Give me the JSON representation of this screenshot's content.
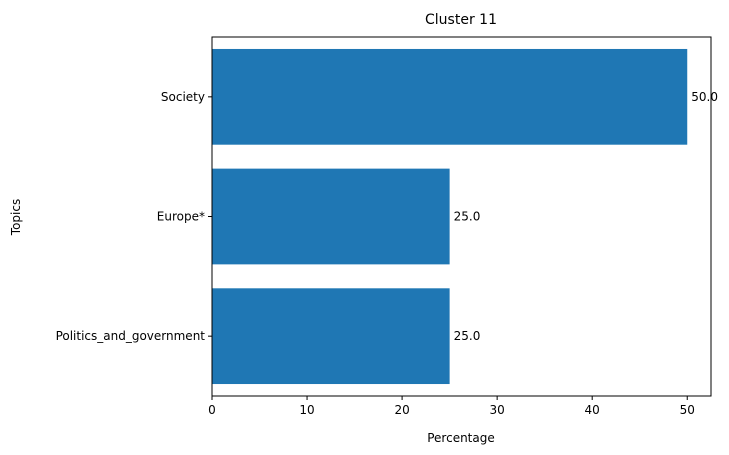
{
  "chart_data": {
    "type": "bar",
    "orientation": "horizontal",
    "title": "Cluster 11",
    "xlabel": "Percentage",
    "ylabel": "Topics",
    "categories": [
      "Society",
      "Europe*",
      "Politics_and_government"
    ],
    "values": [
      50.0,
      25.0,
      25.0
    ],
    "value_labels": [
      "50.0",
      "25.0",
      "25.0"
    ],
    "xlim": [
      0,
      52.5
    ],
    "xticks": [
      0,
      10,
      20,
      30,
      40,
      50
    ],
    "xtick_labels": [
      "0",
      "10",
      "20",
      "30",
      "40",
      "50"
    ],
    "grid": false,
    "legend": "none",
    "bar_color": "#1f77b4"
  }
}
